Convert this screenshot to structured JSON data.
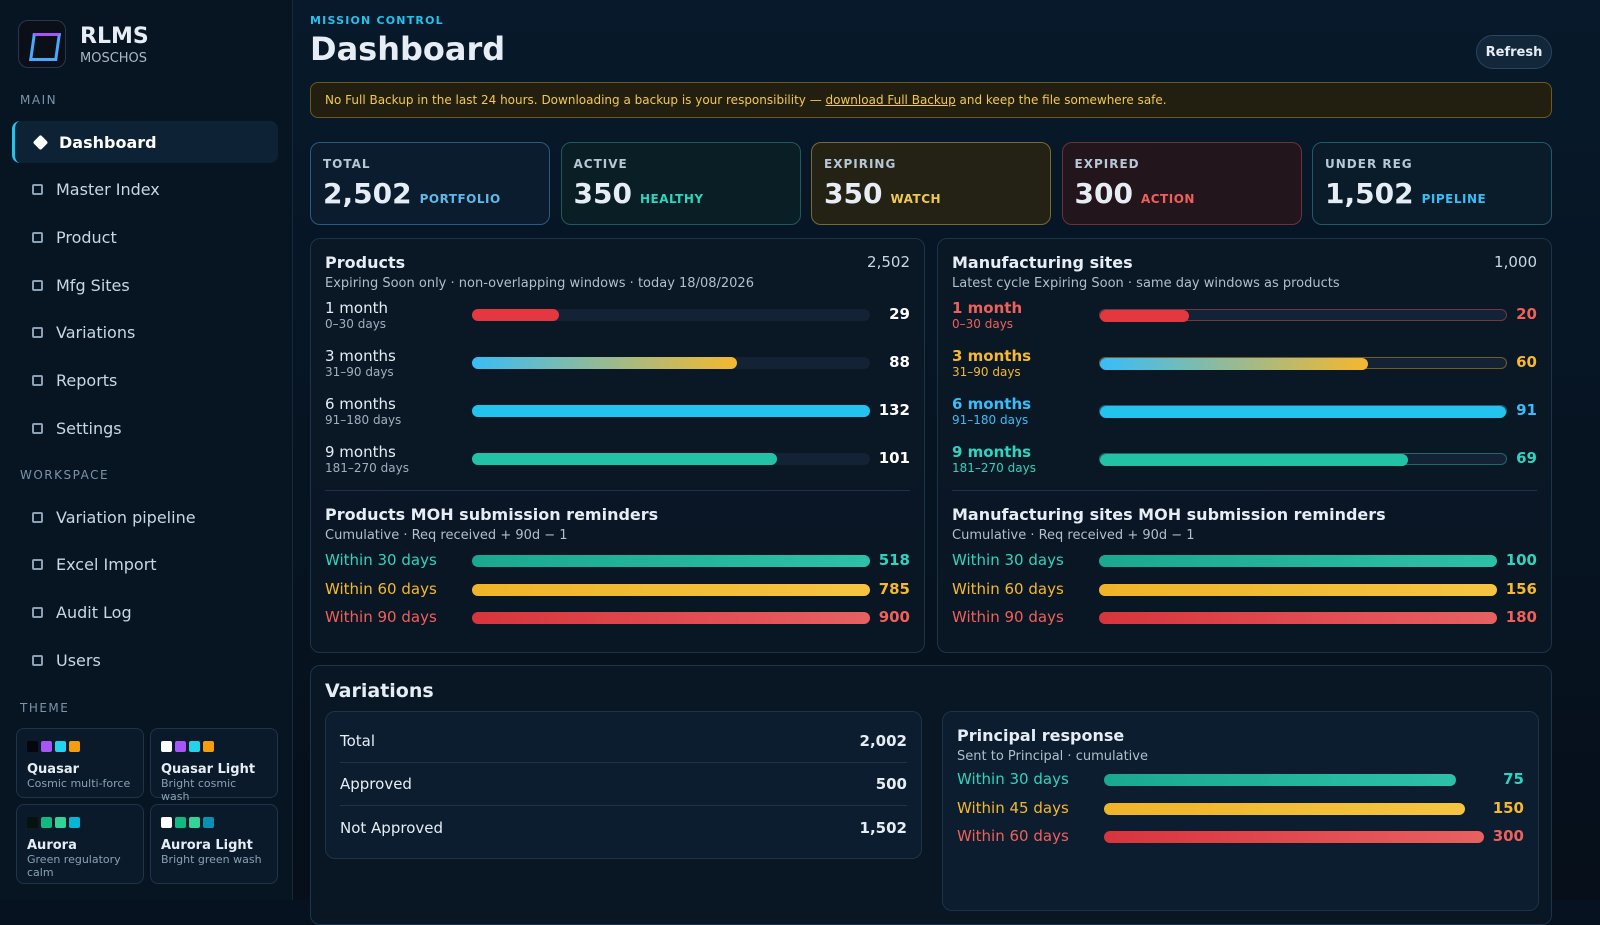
{
  "sidebar": {
    "brand": {
      "name": "RLMS",
      "sub": "MOSCHOS"
    },
    "sections": [
      {
        "title": "MAIN",
        "items": [
          "Dashboard",
          "Master Index",
          "Product",
          "Mfg Sites",
          "Variations",
          "Reports",
          "Settings"
        ]
      },
      {
        "title": "WORKSPACE",
        "items": [
          "Variation pipeline",
          "Excel Import",
          "Audit Log",
          "Users"
        ]
      }
    ],
    "theme": {
      "title": "THEME",
      "options": [
        {
          "name": "Quasar",
          "desc": "Cosmic multi-force",
          "swatches": [
            "#05070d",
            "#a855f7",
            "#22d3ee",
            "#f59e0b"
          ]
        },
        {
          "name": "Quasar Light",
          "desc": "Bright cosmic wash",
          "swatches": [
            "#ffffff",
            "#a855f7",
            "#22d3ee",
            "#f59e0b"
          ]
        },
        {
          "name": "Aurora",
          "desc": "Green regulatory calm",
          "swatches": [
            "#05120d",
            "#10b981",
            "#34d399",
            "#06b6d4"
          ]
        },
        {
          "name": "Aurora Light",
          "desc": "Bright green wash",
          "swatches": [
            "#ffffff",
            "#10b981",
            "#34d399",
            "#0891b2"
          ]
        }
      ]
    }
  },
  "header": {
    "eyebrow": "MISSION CONTROL",
    "title": "Dashboard",
    "button": "Refresh"
  },
  "alert": {
    "before": "No Full Backup in the last 24 hours. Downloading a backup is your responsibility — ",
    "link": "download Full Backup",
    "after": " and keep the file somewhere safe."
  },
  "stats": [
    {
      "label": "TOTAL",
      "value": "2,502",
      "tag": "PORTFOLIO"
    },
    {
      "label": "ACTIVE",
      "value": "350",
      "tag": "HEALTHY"
    },
    {
      "label": "EXPIRING",
      "value": "350",
      "tag": "WATCH"
    },
    {
      "label": "EXPIRED",
      "value": "300",
      "tag": "ACTION"
    },
    {
      "label": "UNDER REG",
      "value": "1,502",
      "tag": "PIPELINE"
    }
  ],
  "panels": [
    {
      "title": "Products",
      "total": "2,502",
      "subtitle": "Expiring Soon only · non-overlapping windows · today 18/08/2026",
      "rows": [
        {
          "label": "1 month",
          "range": "0–30 days",
          "value": 29
        },
        {
          "label": "3 months",
          "range": "31–90 days",
          "value": 88
        },
        {
          "label": "6 months",
          "range": "91–180 days",
          "value": 132
        },
        {
          "label": "9 months",
          "range": "181–270 days",
          "value": 101
        }
      ],
      "reminders": {
        "title": "Products MOH submission reminders",
        "subtitle": "Cumulative · Req received + 90d − 1",
        "rows": [
          {
            "label": "Within 30 days",
            "value": 518
          },
          {
            "label": "Within 60 days",
            "value": 785
          },
          {
            "label": "Within 90 days",
            "value": 900
          }
        ]
      }
    },
    {
      "title": "Manufacturing sites",
      "total": "1,000",
      "subtitle": "Latest cycle Expiring Soon · same day windows as products",
      "rows": [
        {
          "label": "1 month",
          "range": "0–30 days",
          "value": 20
        },
        {
          "label": "3 months",
          "range": "31–90 days",
          "value": 60
        },
        {
          "label": "6 months",
          "range": "91–180 days",
          "value": 91
        },
        {
          "label": "9 months",
          "range": "181–270 days",
          "value": 69
        }
      ],
      "reminders": {
        "title": "Manufacturing sites MOH submission reminders",
        "subtitle": "Cumulative · Req received + 90d − 1",
        "rows": [
          {
            "label": "Within 30 days",
            "value": 100
          },
          {
            "label": "Within 60 days",
            "value": 156
          },
          {
            "label": "Within 90 days",
            "value": 180
          }
        ]
      }
    }
  ],
  "variations": {
    "title": "Variations",
    "table": [
      {
        "label": "Total",
        "value": "2,002"
      },
      {
        "label": "Approved",
        "value": "500"
      },
      {
        "label": "Not Approved",
        "value": "1,502"
      }
    ],
    "principal": {
      "title": "Principal response",
      "subtitle": "Sent to Principal · cumulative",
      "rows": [
        {
          "label": "Within 30 days",
          "value": 75
        },
        {
          "label": "Within 45 days",
          "value": 150
        },
        {
          "label": "Within 60 days",
          "value": 300
        }
      ]
    }
  }
}
